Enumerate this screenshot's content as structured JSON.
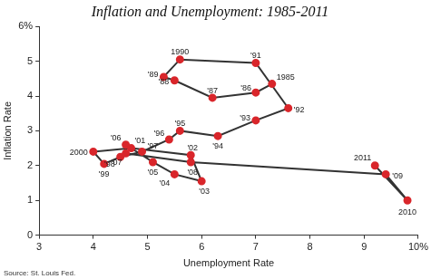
{
  "chart_data": {
    "type": "scatter",
    "title": "Inflation and Unemployment: 1985-2011",
    "x_label": "Unemployment Rate",
    "y_label": "Inflation Rate",
    "source": "Source: St. Louis Fed.",
    "xlim": [
      3,
      10
    ],
    "xticks": [
      3,
      4,
      5,
      6,
      7,
      8,
      9,
      {
        "value": 10,
        "label": "10%"
      }
    ],
    "ylim": [
      0,
      6
    ],
    "yticks": [
      0,
      1,
      2,
      3,
      4,
      5,
      {
        "value": 6,
        "label": "6%"
      }
    ],
    "grid": false,
    "series": [
      {
        "name": "Inflation and Unemployment",
        "color": "#333333",
        "marker": "circle",
        "line_style": "solid",
        "labels": [
          "1985",
          "'86",
          "'87",
          "'88",
          "'89",
          "1990",
          "'91",
          "'92",
          "'93",
          "'94",
          "'95",
          "'96",
          "'97",
          "'98",
          "'99",
          "2000",
          "'01",
          "'02",
          "'03",
          "'04",
          "'05",
          "'06",
          "'07",
          "'08",
          "'09",
          "2010",
          "2011"
        ],
        "x": [
          7.3,
          7.0,
          6.2,
          5.5,
          5.3,
          5.6,
          7.0,
          7.6,
          7.0,
          6.3,
          5.6,
          5.4,
          4.9,
          4.5,
          4.2,
          4.0,
          4.7,
          5.8,
          6.0,
          5.5,
          5.1,
          4.6,
          4.6,
          5.8,
          9.4,
          9.8,
          9.2
        ],
        "values": [
          4.35,
          4.1,
          3.95,
          4.45,
          4.55,
          5.05,
          4.95,
          3.65,
          3.3,
          2.85,
          3.0,
          2.75,
          2.4,
          2.25,
          2.05,
          2.4,
          2.5,
          2.3,
          1.55,
          1.75,
          2.1,
          2.6,
          2.35,
          2.1,
          1.75,
          1.0,
          2.0
        ]
      }
    ],
    "colors": [
      "#d9262b"
    ]
  }
}
